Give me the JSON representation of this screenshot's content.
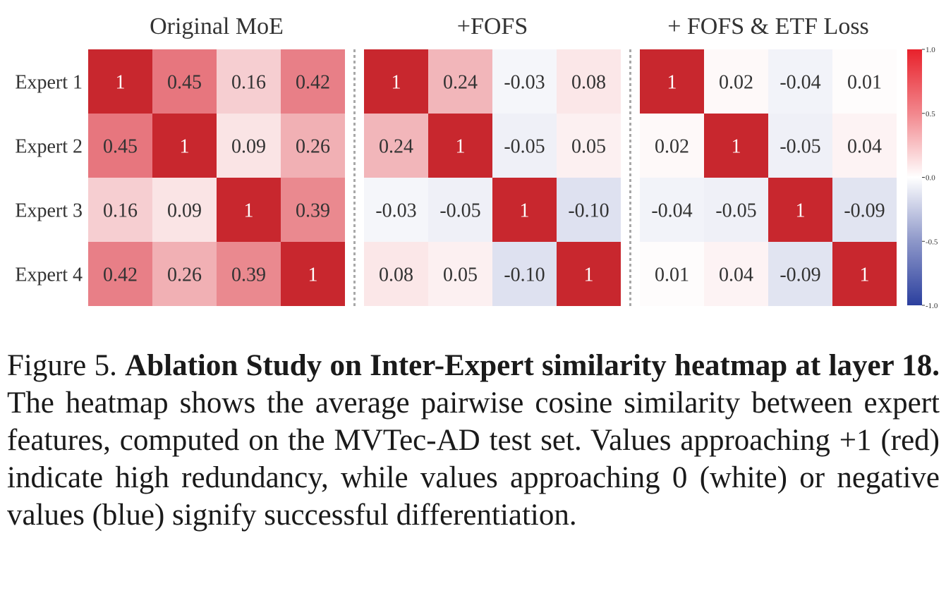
{
  "chart_data": {
    "type": "heatmap",
    "row_labels": [
      "Expert 1",
      "Expert 2",
      "Expert 3",
      "Expert 4"
    ],
    "panels": [
      {
        "title": "Original MoE",
        "matrix": [
          [
            1,
            0.45,
            0.16,
            0.42
          ],
          [
            0.45,
            1,
            0.09,
            0.26
          ],
          [
            0.16,
            0.09,
            1,
            0.39
          ],
          [
            0.42,
            0.26,
            0.39,
            1
          ]
        ],
        "labels": [
          [
            "1",
            "0.45",
            "0.16",
            "0.42"
          ],
          [
            "0.45",
            "1",
            "0.09",
            "0.26"
          ],
          [
            "0.16",
            "0.09",
            "1",
            "0.39"
          ],
          [
            "0.42",
            "0.26",
            "0.39",
            "1"
          ]
        ]
      },
      {
        "title": "+FOFS",
        "matrix": [
          [
            1,
            0.24,
            -0.03,
            0.08
          ],
          [
            0.24,
            1,
            -0.05,
            0.05
          ],
          [
            -0.03,
            -0.05,
            1,
            -0.1
          ],
          [
            0.08,
            0.05,
            -0.1,
            1
          ]
        ],
        "labels": [
          [
            "1",
            "0.24",
            "-0.03",
            "0.08"
          ],
          [
            "0.24",
            "1",
            "-0.05",
            "0.05"
          ],
          [
            "-0.03",
            "-0.05",
            "1",
            "-0.10"
          ],
          [
            "0.08",
            "0.05",
            "-0.10",
            "1"
          ]
        ]
      },
      {
        "title": "+ FOFS & ETF Loss",
        "matrix": [
          [
            1,
            0.02,
            -0.04,
            0.01
          ],
          [
            0.02,
            1,
            -0.05,
            0.04
          ],
          [
            -0.04,
            -0.05,
            1,
            -0.09
          ],
          [
            0.01,
            0.04,
            -0.09,
            1
          ]
        ],
        "labels": [
          [
            "1",
            "0.02",
            "-0.04",
            "0.01"
          ],
          [
            "0.02",
            "1",
            "-0.05",
            "0.04"
          ],
          [
            "-0.04",
            "-0.05",
            "1",
            "-0.09"
          ],
          [
            "0.01",
            "0.04",
            "-0.09",
            "1"
          ]
        ]
      }
    ],
    "colorbar": {
      "range": [
        -1.0,
        1.0
      ],
      "ticks": [
        "1.0",
        "0.5",
        "0.0",
        "-0.5",
        "-1.0"
      ],
      "tick_values": [
        1.0,
        0.5,
        0.0,
        -0.5,
        -1.0
      ],
      "colors": {
        "high": "#c8272e",
        "mid": "#ffffff",
        "low": "#2b3f9e"
      },
      "diagonal_color": "#c8272e"
    }
  },
  "caption": {
    "label": "Figure 5.",
    "title": "Ablation Study on Inter-Expert similarity heatmap at layer 18.",
    "body": "The heatmap shows the average pairwise cosine similarity between expert features, computed on the MVTec-AD test set. Values approaching +1 (red) indicate high redundancy, while values approaching 0 (white) or negative values (blue) signify successful differentiation."
  }
}
